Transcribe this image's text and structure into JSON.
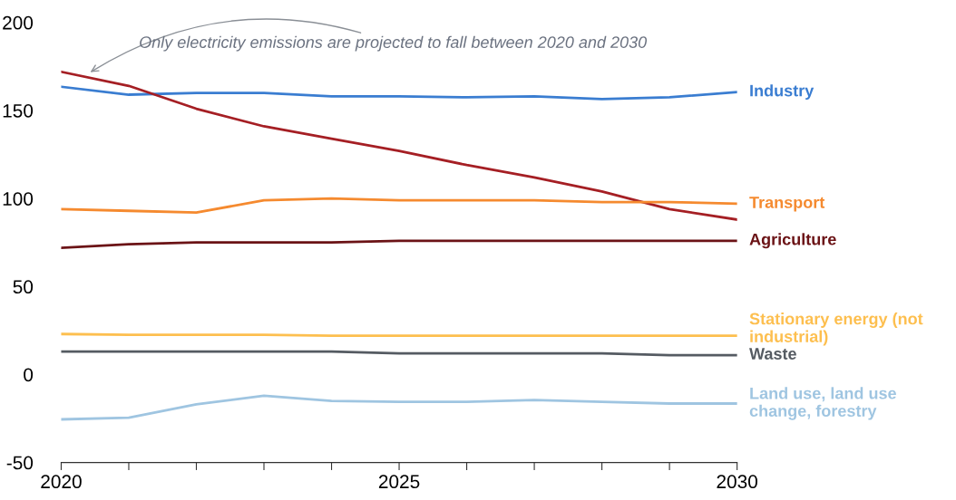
{
  "chart_data": {
    "type": "line",
    "x": [
      2020,
      2021,
      2022,
      2023,
      2024,
      2025,
      2026,
      2027,
      2028,
      2029,
      2030
    ],
    "series": [
      {
        "name": "Industry",
        "color": "#3a7dd1",
        "values": [
          163.5,
          159,
          160,
          160,
          158,
          158,
          157.5,
          158,
          156.5,
          157.5,
          160.5
        ]
      },
      {
        "color": "#a51f24",
        "values": [
          172,
          164,
          151,
          141,
          134,
          127,
          119,
          112,
          104,
          94,
          88
        ]
      },
      {
        "name": "Transport",
        "color": "#f58a2f",
        "values": [
          94,
          93,
          92,
          99,
          100,
          99,
          99,
          99,
          98,
          98,
          97
        ]
      },
      {
        "name": "Agriculture",
        "color": "#6b1316",
        "values": [
          72,
          74,
          75,
          75,
          75,
          76,
          76,
          76,
          76,
          76,
          76
        ]
      },
      {
        "name": "Stationary energy (not industrial)",
        "color": "#fdbf4f",
        "values": [
          23,
          22.5,
          22.5,
          22.5,
          22,
          22,
          22,
          22,
          22,
          22,
          22
        ]
      },
      {
        "name": "Waste",
        "color": "#555b62",
        "values": [
          13,
          13,
          13,
          13,
          13,
          12,
          12,
          12,
          12,
          11,
          11
        ]
      },
      {
        "name": "Land use, land use change, forestry",
        "color": "#9fc5e1",
        "values": [
          -25.5,
          -24.5,
          -17,
          -12,
          -15,
          -15.5,
          -15.5,
          -14.5,
          -15.5,
          -16.5,
          -16.5
        ]
      }
    ],
    "annotations": [
      {
        "text": "Only electricity emissions are projected to fall between 2020 and 2030",
        "x": 2020.4,
        "y": 171
      }
    ],
    "xlim": [
      2020,
      2030
    ],
    "xticks": [
      2020,
      {
        "value": 2021,
        "label": null
      },
      {
        "value": 2022,
        "label": null
      },
      {
        "value": 2023,
        "label": null
      },
      {
        "value": 2024,
        "label": null
      },
      2025,
      {
        "value": 2026,
        "label": null
      },
      {
        "value": 2027,
        "label": null
      },
      {
        "value": 2028,
        "label": null
      },
      {
        "value": 2029,
        "label": null
      },
      2030
    ],
    "ylim": [
      -50,
      200
    ],
    "yticks": [
      -50,
      0,
      50,
      100,
      150,
      200
    ],
    "grid": false,
    "legend": false,
    "marker": "none",
    "line_style": "solid"
  }
}
